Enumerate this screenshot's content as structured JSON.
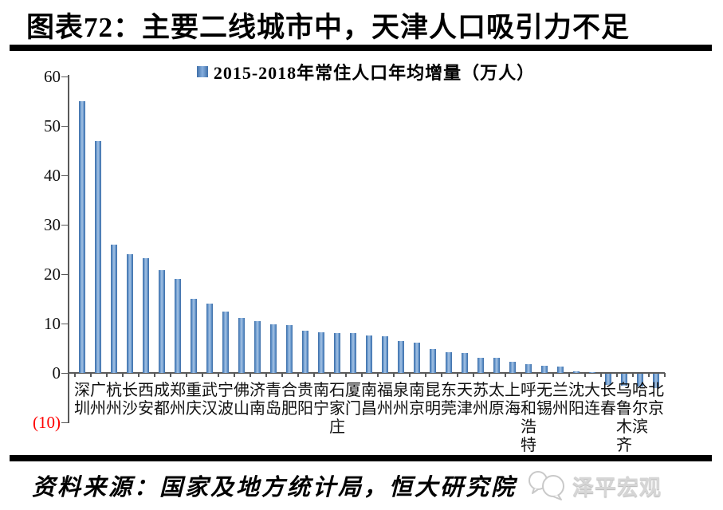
{
  "page": {
    "title": "图表72：主要二线城市中，天津人口吸引力不足",
    "source_note": "资料来源：国家及地方统计局，恒大研究院",
    "logo_text": "泽平宏观"
  },
  "chart_data": {
    "type": "bar",
    "title": "2015-2018年常住人口年均增量（万人）",
    "legend_position": "top-center",
    "bar_color": "#4F81BD",
    "axis_color": "#595959",
    "ylim": [
      -10,
      60
    ],
    "grid": false,
    "yticks": [
      {
        "label": "60",
        "value": 60
      },
      {
        "label": "50",
        "value": 50
      },
      {
        "label": "40",
        "value": 40
      },
      {
        "label": "30",
        "value": 30
      },
      {
        "label": "20",
        "value": 20
      },
      {
        "label": "10",
        "value": 10
      },
      {
        "label": "0",
        "value": 0
      },
      {
        "label": "(10)",
        "value": -10,
        "color": "#FF0000"
      }
    ],
    "categories": [
      "深圳",
      "广州",
      "杭州",
      "长沙",
      "西安",
      "成都",
      "郑州",
      "重庆",
      "武汉",
      "宁波",
      "佛山",
      "济南",
      "青岛",
      "合肥",
      "贵阳",
      "南宁",
      "石家庄",
      "厦门",
      "南昌",
      "福州",
      "泉州",
      "南京",
      "昆明",
      "东莞",
      "天津",
      "苏州",
      "太原",
      "上海",
      "呼和浩特",
      "无锡",
      "兰州",
      "沈阳",
      "大连",
      "长春",
      "乌鲁木齐",
      "哈尔滨",
      "北京"
    ],
    "values": [
      55,
      47,
      26,
      24,
      23.2,
      20.8,
      19,
      15,
      14,
      12.4,
      11.2,
      10.5,
      9.8,
      9.7,
      8.5,
      8.2,
      8.1,
      8.0,
      7.6,
      7.5,
      6.5,
      6.1,
      4.9,
      4.2,
      4.0,
      3.1,
      3.0,
      2.2,
      1.8,
      1.5,
      1.3,
      0.3,
      0.1,
      -2.2,
      -2.4,
      -2.5,
      -2.9
    ]
  }
}
